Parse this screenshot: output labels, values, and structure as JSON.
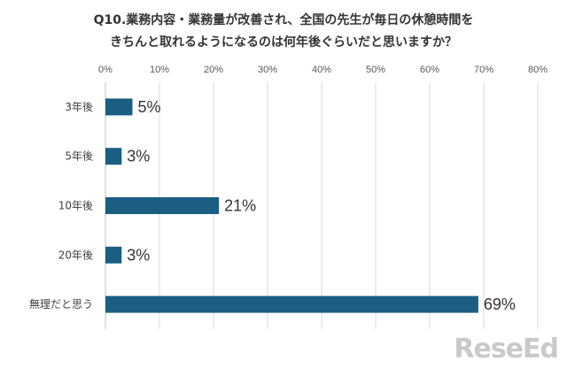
{
  "chart_data": {
    "type": "bar",
    "orientation": "horizontal",
    "title": [
      "Q10.業務内容・業務量が改善され、全国の先生が毎日の休憩時間を",
      "きちんと取れるようになるのは何年後ぐらいだと思いますか？"
    ],
    "categories": [
      "3年後",
      "5年後",
      "10年後",
      "20年後",
      "無理だと思う"
    ],
    "values": [
      5,
      3,
      21,
      3,
      69
    ],
    "data_labels": [
      "5%",
      "3%",
      "21%",
      "3%",
      "69%"
    ],
    "xlim": [
      0,
      80
    ],
    "x_ticks": [
      0,
      10,
      20,
      30,
      40,
      50,
      60,
      70,
      80
    ],
    "x_tick_labels": [
      "0%",
      "10%",
      "20%",
      "30%",
      "40%",
      "50%",
      "60%",
      "70%",
      "80%"
    ],
    "xaxis_position": "top",
    "grid": true,
    "legend": "none",
    "bar_color": "#1a5e82",
    "grid_color": "#d9d9d9"
  },
  "watermark": "ReseEd"
}
